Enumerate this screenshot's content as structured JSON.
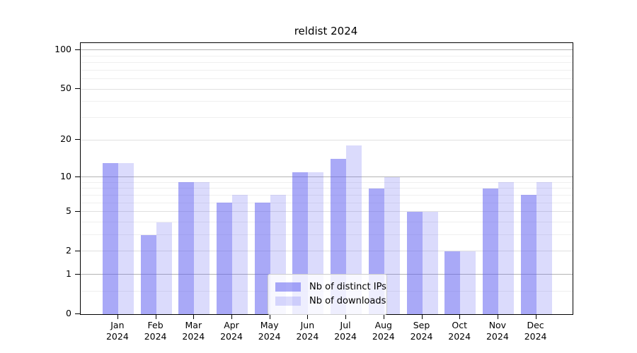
{
  "figure": {
    "title": "reldist 2024"
  },
  "chart_data": {
    "type": "bar",
    "title": "reldist 2024",
    "categories": [
      "Jan",
      "Feb",
      "Mar",
      "Apr",
      "May",
      "Jun",
      "Jul",
      "Aug",
      "Sep",
      "Oct",
      "Nov",
      "Dec"
    ],
    "category_year": "2024",
    "series": [
      {
        "name": "Nb of distinct IPs",
        "values": [
          13,
          3,
          9,
          6,
          6,
          11,
          14,
          8,
          5,
          2,
          8,
          7
        ]
      },
      {
        "name": "Nb of downloads",
        "values": [
          13,
          4,
          9,
          7,
          7,
          11,
          18,
          10,
          5,
          2,
          9,
          9
        ]
      }
    ],
    "xlabel": "",
    "ylabel": "",
    "yscale": "log1p",
    "ylim": [
      0,
      113
    ],
    "yticks": [
      0,
      1,
      2,
      5,
      10,
      20,
      50,
      100
    ],
    "grid": true,
    "legend_position": "lower center"
  },
  "axis": {
    "decade_gridlines": [
      1,
      10,
      100
    ],
    "labeled_gridlines": [
      2,
      5,
      20,
      50
    ],
    "minor_gridlines": [
      0.5,
      3,
      4,
      6,
      7,
      8,
      9,
      30,
      40,
      60,
      70,
      80,
      90
    ]
  },
  "colors": {
    "bar_distinct_ips": "rgba(90,90,240,0.52)",
    "bar_downloads": "rgba(90,90,240,0.22)",
    "grid_decade": "#b4b4b4",
    "grid_labeled": "#e0e0e0",
    "grid_minor": "#efefef",
    "spine": "#000000",
    "legend_border": "#cccccc"
  },
  "legend": {
    "items": [
      {
        "label": "Nb of distinct IPs"
      },
      {
        "label": "Nb of downloads"
      }
    ]
  }
}
